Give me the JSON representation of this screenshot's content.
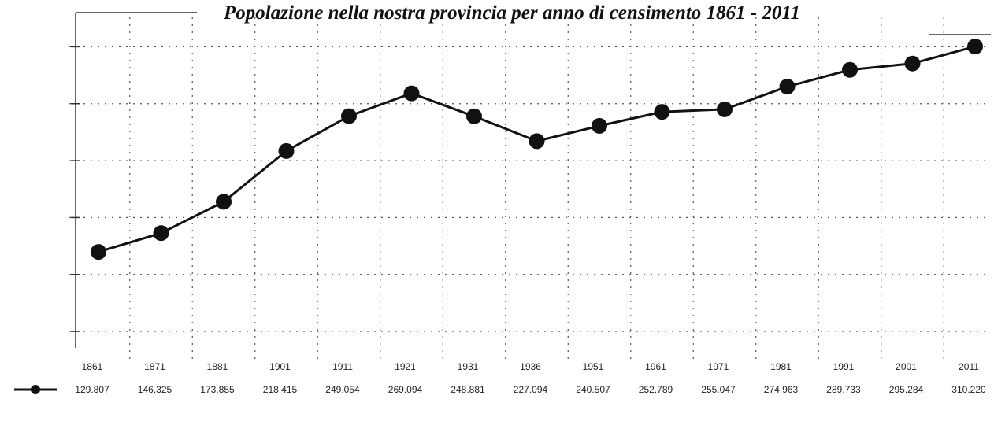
{
  "chart_data": {
    "type": "line",
    "title": "Popolazione nella nostra provincia per anno di censimento  1861 - 2011",
    "categories": [
      "1861",
      "1871",
      "1881",
      "1901",
      "1911",
      "1921",
      "1931",
      "1936",
      "1951",
      "1961",
      "1971",
      "1981",
      "1991",
      "2001",
      "2011"
    ],
    "series": [
      {
        "values": [
          129807,
          146325,
          173855,
          218415,
          249054,
          269094,
          248881,
          227094,
          240507,
          252789,
          255047,
          274963,
          289733,
          295284,
          310220
        ],
        "value_labels": [
          "129.807",
          "146.325",
          "173.855",
          "218.415",
          "249.054",
          "269.094",
          "248.881",
          "227.094",
          "240.507",
          "252.789",
          "255.047",
          "274.963",
          "289.733",
          "295.284",
          "310.220"
        ]
      }
    ],
    "ylim": [
      40000,
      340000
    ],
    "grid": true,
    "legend": "bottom-left",
    "colors": {
      "series": "#111111",
      "grid": "#555555"
    }
  }
}
